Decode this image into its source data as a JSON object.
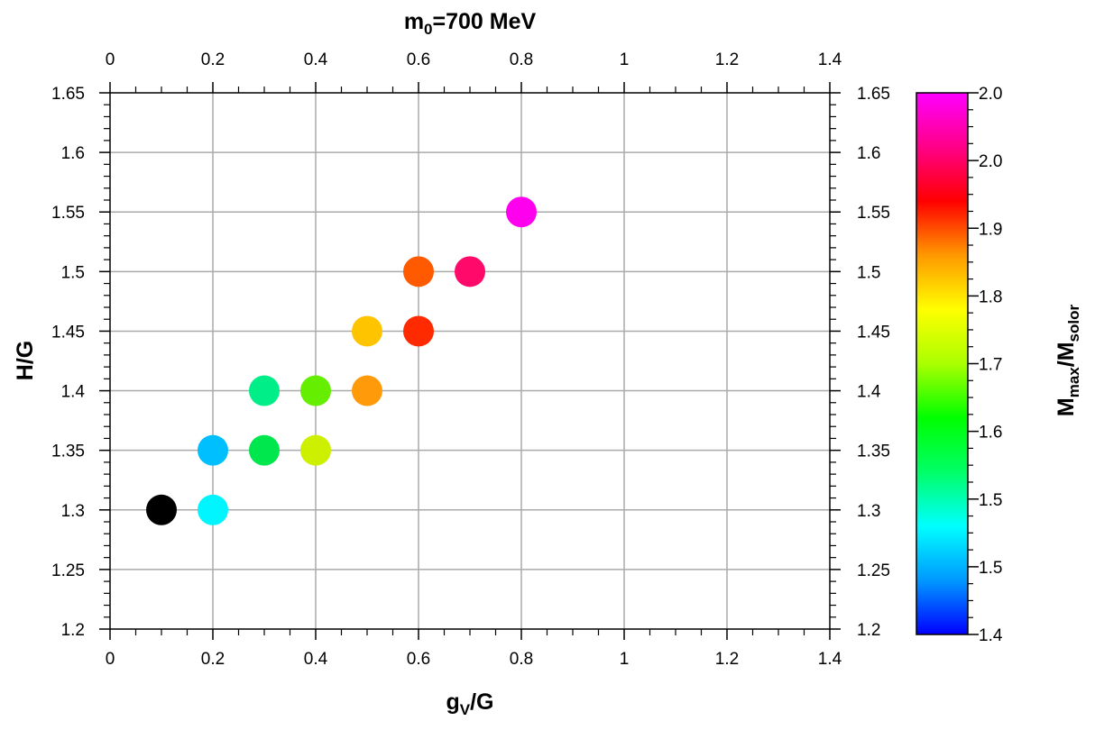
{
  "chart_data": {
    "type": "scatter",
    "title": "m",
    "title_sub": "0",
    "title_rest": "=700 MeV",
    "xlabel": "g",
    "xlabel_sub": "V",
    "xlabel_rest": "/G",
    "ylabel": "H/G",
    "colorbar_label": "M",
    "colorbar_label_sub1": "max",
    "colorbar_label_mid": "/M",
    "colorbar_label_sub2": "solor",
    "xlim": [
      0,
      1.4
    ],
    "ylim": [
      1.2,
      1.65
    ],
    "grid": true,
    "x_ticks": [
      "0",
      "0.2",
      "0.4",
      "0.6",
      "0.8",
      "1",
      "1.2",
      "1.4"
    ],
    "y_ticks": [
      "1.2",
      "1.25",
      "1.3",
      "1.35",
      "1.4",
      "1.45",
      "1.5",
      "1.55",
      "1.6",
      "1.65"
    ],
    "colorbar_ticks": [
      "1.4",
      "1.5",
      "1.5",
      "1.6",
      "1.7",
      "1.8",
      "1.9",
      "2.0",
      "2.0"
    ],
    "colorbar_range": [
      1.4,
      2.05
    ],
    "colormap": [
      "#0000ff",
      "#0099ff",
      "#00ffff",
      "#00ff66",
      "#00ff00",
      "#aaff00",
      "#ffff00",
      "#ff9900",
      "#ff0000",
      "#ff0088",
      "#ff00ff"
    ],
    "points": [
      {
        "x": 0.1,
        "y": 1.3,
        "color": "#000000"
      },
      {
        "x": 0.2,
        "y": 1.3,
        "color": "#00f5ff"
      },
      {
        "x": 0.2,
        "y": 1.35,
        "color": "#00bfff"
      },
      {
        "x": 0.3,
        "y": 1.35,
        "color": "#00e64d"
      },
      {
        "x": 0.3,
        "y": 1.4,
        "color": "#00ee88"
      },
      {
        "x": 0.4,
        "y": 1.35,
        "color": "#ccf000"
      },
      {
        "x": 0.4,
        "y": 1.4,
        "color": "#66ee00"
      },
      {
        "x": 0.5,
        "y": 1.4,
        "color": "#ff9a0a"
      },
      {
        "x": 0.5,
        "y": 1.45,
        "color": "#ffc400"
      },
      {
        "x": 0.6,
        "y": 1.45,
        "color": "#ff2a00"
      },
      {
        "x": 0.6,
        "y": 1.5,
        "color": "#ff5a00"
      },
      {
        "x": 0.7,
        "y": 1.5,
        "color": "#ff0a6a"
      },
      {
        "x": 0.8,
        "y": 1.55,
        "color": "#ff00ee"
      }
    ]
  }
}
